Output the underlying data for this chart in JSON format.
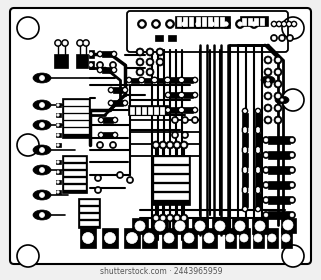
{
  "bg_color": "#f0f0f0",
  "board_color": "#ffffff",
  "trace_color": "#000000",
  "fig_width": 3.21,
  "fig_height": 2.8,
  "dpi": 100,
  "watermark": "shutterstock.com · 2443965959"
}
